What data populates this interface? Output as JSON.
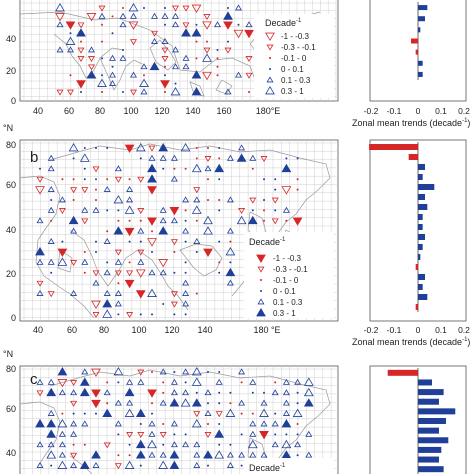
{
  "colors": {
    "decrease": "#d62728",
    "increase": "#1f3f99",
    "grid": "#cfcfcf",
    "coast": "#9a9a9a"
  },
  "legend": {
    "title": "Decade",
    "title_sup": "-1",
    "entries": [
      "-1 - -0.3",
      "-0.3 - -0.1",
      "-0.1 - 0",
      "0 - 0.1",
      "0.1 - 0.3",
      "0.3 - 1"
    ]
  },
  "panels": [
    {
      "label": "",
      "lat_ticks": [
        "40",
        "20",
        "0"
      ],
      "lon_ticks": [
        "40",
        "60",
        "80",
        "100",
        "120",
        "140",
        "160",
        "180°E"
      ],
      "bar_ticks": [
        "-0.2",
        "-0.1",
        "0",
        "0.1",
        "0.2"
      ],
      "bar_xlabel_main": "Zonal mean trends (decade",
      "bar_xlabel_sup": "-1",
      "bar_xlabel_end": ")",
      "zonal_trends": [
        0.04,
        0.03,
        0.01,
        -0.03,
        -0.01,
        0.02,
        0.02
      ]
    },
    {
      "label": "b",
      "lat_unit": "°N",
      "lat_ticks": [
        "80",
        "60",
        "40",
        "20",
        "0"
      ],
      "lon_ticks": [
        "40",
        "60",
        "80",
        "100",
        "120",
        "140",
        "180 °E"
      ],
      "bar_ticks": [
        "-0.2",
        "-0.1",
        "0",
        "0.1",
        "0.2"
      ],
      "bar_xlabel_main": "Zonal mean trends (decade",
      "bar_xlabel_sup": "-1",
      "bar_xlabel_end": ")",
      "zonal_trends": [
        -0.21,
        -0.04,
        0.03,
        0.02,
        0.07,
        0.03,
        0.04,
        0.02,
        0.02,
        0.03,
        0.02,
        0.01,
        -0.01,
        0.03,
        0.02,
        0.04,
        -0.01
      ]
    },
    {
      "label": "c",
      "lat_unit": "°N",
      "lat_ticks": [
        "80",
        "60",
        "40"
      ],
      "zonal_trends": [
        -0.13,
        0.06,
        0.11,
        0.09,
        0.16,
        0.12,
        0.09,
        0.13,
        0.1,
        0.09,
        0.11
      ]
    }
  ]
}
